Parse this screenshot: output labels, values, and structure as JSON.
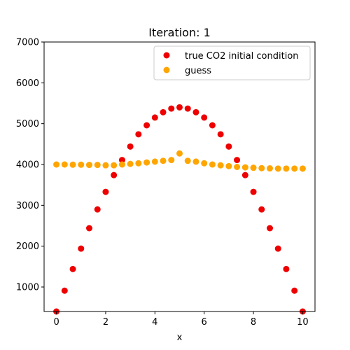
{
  "chart_data": {
    "type": "scatter",
    "title": "Iteration: 1",
    "xlabel": "x",
    "ylabel": "",
    "xlim": [
      -0.5,
      10.5
    ],
    "ylim": [
      400,
      7000
    ],
    "xticks": [
      0,
      2,
      4,
      6,
      8,
      10
    ],
    "yticks": [
      1000,
      2000,
      3000,
      4000,
      5000,
      6000,
      7000
    ],
    "grid": false,
    "legend_position": "top-right",
    "series": [
      {
        "name": "true CO2 initial condition",
        "color": "#ee0000",
        "x": [
          0,
          0.333,
          0.667,
          1.0,
          1.333,
          1.667,
          2.0,
          2.333,
          2.667,
          3.0,
          3.333,
          3.667,
          4.0,
          4.333,
          4.667,
          5.0,
          5.333,
          5.667,
          6.0,
          6.333,
          6.667,
          7.0,
          7.333,
          7.667,
          8.0,
          8.333,
          8.667,
          9.0,
          9.333,
          9.667,
          10.0
        ],
        "y": [
          400,
          910,
          1440,
          1940,
          2440,
          2900,
          3330,
          3740,
          4110,
          4440,
          4740,
          4960,
          5150,
          5280,
          5370,
          5400,
          5370,
          5280,
          5150,
          4960,
          4740,
          4440,
          4110,
          3740,
          3330,
          2900,
          2440,
          1940,
          1440,
          910,
          400
        ]
      },
      {
        "name": "guess",
        "color": "#ffa500",
        "x": [
          0,
          0.333,
          0.667,
          1.0,
          1.333,
          1.667,
          2.0,
          2.333,
          2.667,
          3.0,
          3.333,
          3.667,
          4.0,
          4.333,
          4.667,
          5.0,
          5.333,
          5.667,
          6.0,
          6.333,
          6.667,
          7.0,
          7.333,
          7.667,
          8.0,
          8.333,
          8.667,
          9.0,
          9.333,
          9.667,
          10.0
        ],
        "y": [
          4000,
          4000,
          3995,
          3995,
          3990,
          3990,
          3980,
          3980,
          4000,
          4015,
          4030,
          4050,
          4070,
          4090,
          4110,
          4270,
          4090,
          4070,
          4030,
          4000,
          3980,
          3960,
          3940,
          3930,
          3920,
          3910,
          3905,
          3900,
          3900,
          3900,
          3900
        ]
      }
    ]
  }
}
